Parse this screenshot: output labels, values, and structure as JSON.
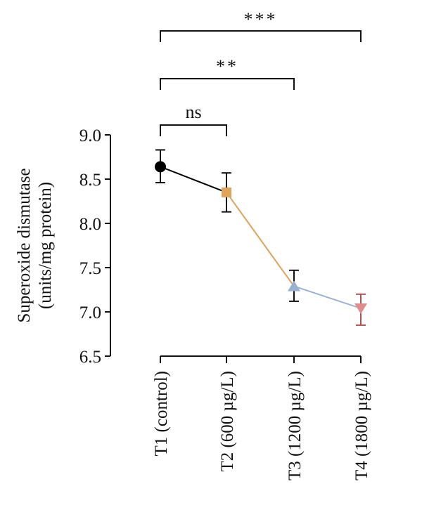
{
  "chart_data": {
    "type": "line",
    "ylabel_lines": [
      "Superoxide dismutase",
      "(units/mg protein)"
    ],
    "categories": [
      "T1 (control)",
      "T2 (600 µg/L)",
      "T3 (1200 µg/L)",
      "T4 (1800 µg/L)"
    ],
    "points": [
      {
        "category": "T1 (control)",
        "value": 8.64,
        "error_high": 8.83,
        "error_low": 8.46,
        "marker": "circle",
        "color": "#000000"
      },
      {
        "category": "T2 (600 µg/L)",
        "value": 8.35,
        "error_high": 8.57,
        "error_low": 8.13,
        "marker": "square",
        "color": "#e0a35a"
      },
      {
        "category": "T3 (1200 µg/L)",
        "value": 7.29,
        "error_high": 7.47,
        "error_low": 7.12,
        "marker": "triangle-up",
        "color": "#98b2d4"
      },
      {
        "category": "T4 (1800 µg/L)",
        "value": 7.04,
        "error_high": 7.2,
        "error_low": 6.85,
        "marker": "triangle-down",
        "color": "#e08c8c"
      }
    ],
    "segment_colors": [
      "#000000",
      "#e0a35a",
      "#98b2d4"
    ],
    "errorbar_colors": [
      "#111111",
      "#111111",
      "#111111",
      "#b05050"
    ],
    "ylim": [
      6.5,
      9.0
    ],
    "yticks": [
      "6.5",
      "7.0",
      "7.5",
      "8.0",
      "8.5",
      "9.0"
    ],
    "grid": false,
    "significance": [
      {
        "from": "T1 (control)",
        "to": "T2 (600 µg/L)",
        "label": "ns"
      },
      {
        "from": "T1 (control)",
        "to": "T3 (1200 µg/L)",
        "label": "**"
      },
      {
        "from": "T1 (control)",
        "to": "T4 (1800 µg/L)",
        "label": "***"
      }
    ]
  }
}
